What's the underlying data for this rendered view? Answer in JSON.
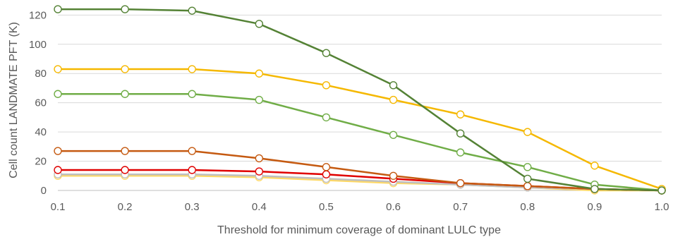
{
  "chart_data": {
    "type": "line",
    "title": "",
    "xlabel": "Threshold for minimum coverage of dominant LULC type",
    "ylabel": "Cell count LANDMATE PFT (K)",
    "x": [
      0.1,
      0.2,
      0.3,
      0.4,
      0.5,
      0.6,
      0.7,
      0.8,
      0.9,
      1.0
    ],
    "x_tick_labels": [
      "0.1",
      "0.2",
      "0.3",
      "0.4",
      "0.5",
      "0.6",
      "0.7",
      "0.8",
      "0.9",
      "1.0"
    ],
    "y_ticks": [
      0,
      20,
      40,
      60,
      80,
      100,
      120
    ],
    "xlim": [
      0.1,
      1.0
    ],
    "ylim": [
      0,
      125
    ],
    "grid": "horizontal",
    "legend": "none",
    "series": [
      {
        "color": "#548235",
        "values": [
          124,
          124,
          123,
          114,
          94,
          72,
          39,
          8,
          1,
          0
        ]
      },
      {
        "color": "#f5b800",
        "values": [
          83,
          83,
          83,
          80,
          72,
          62,
          52,
          40,
          17,
          1
        ]
      },
      {
        "color": "#70ad47",
        "values": [
          66,
          66,
          66,
          62,
          50,
          38,
          26,
          16,
          4,
          0
        ]
      },
      {
        "color": "#c55a11",
        "values": [
          27,
          27,
          27,
          22,
          16,
          10,
          5,
          3,
          1,
          0
        ]
      },
      {
        "color": "#e00000",
        "values": [
          14,
          14,
          14,
          13,
          11,
          8,
          5,
          3,
          1,
          0
        ]
      },
      {
        "color": "#bfbfbf",
        "values": [
          11,
          11,
          11,
          10,
          8,
          6,
          4,
          2,
          1,
          0
        ]
      },
      {
        "color": "#ffd966",
        "values": [
          10,
          10,
          10,
          9,
          7,
          5,
          4,
          2,
          0,
          0
        ]
      }
    ]
  }
}
